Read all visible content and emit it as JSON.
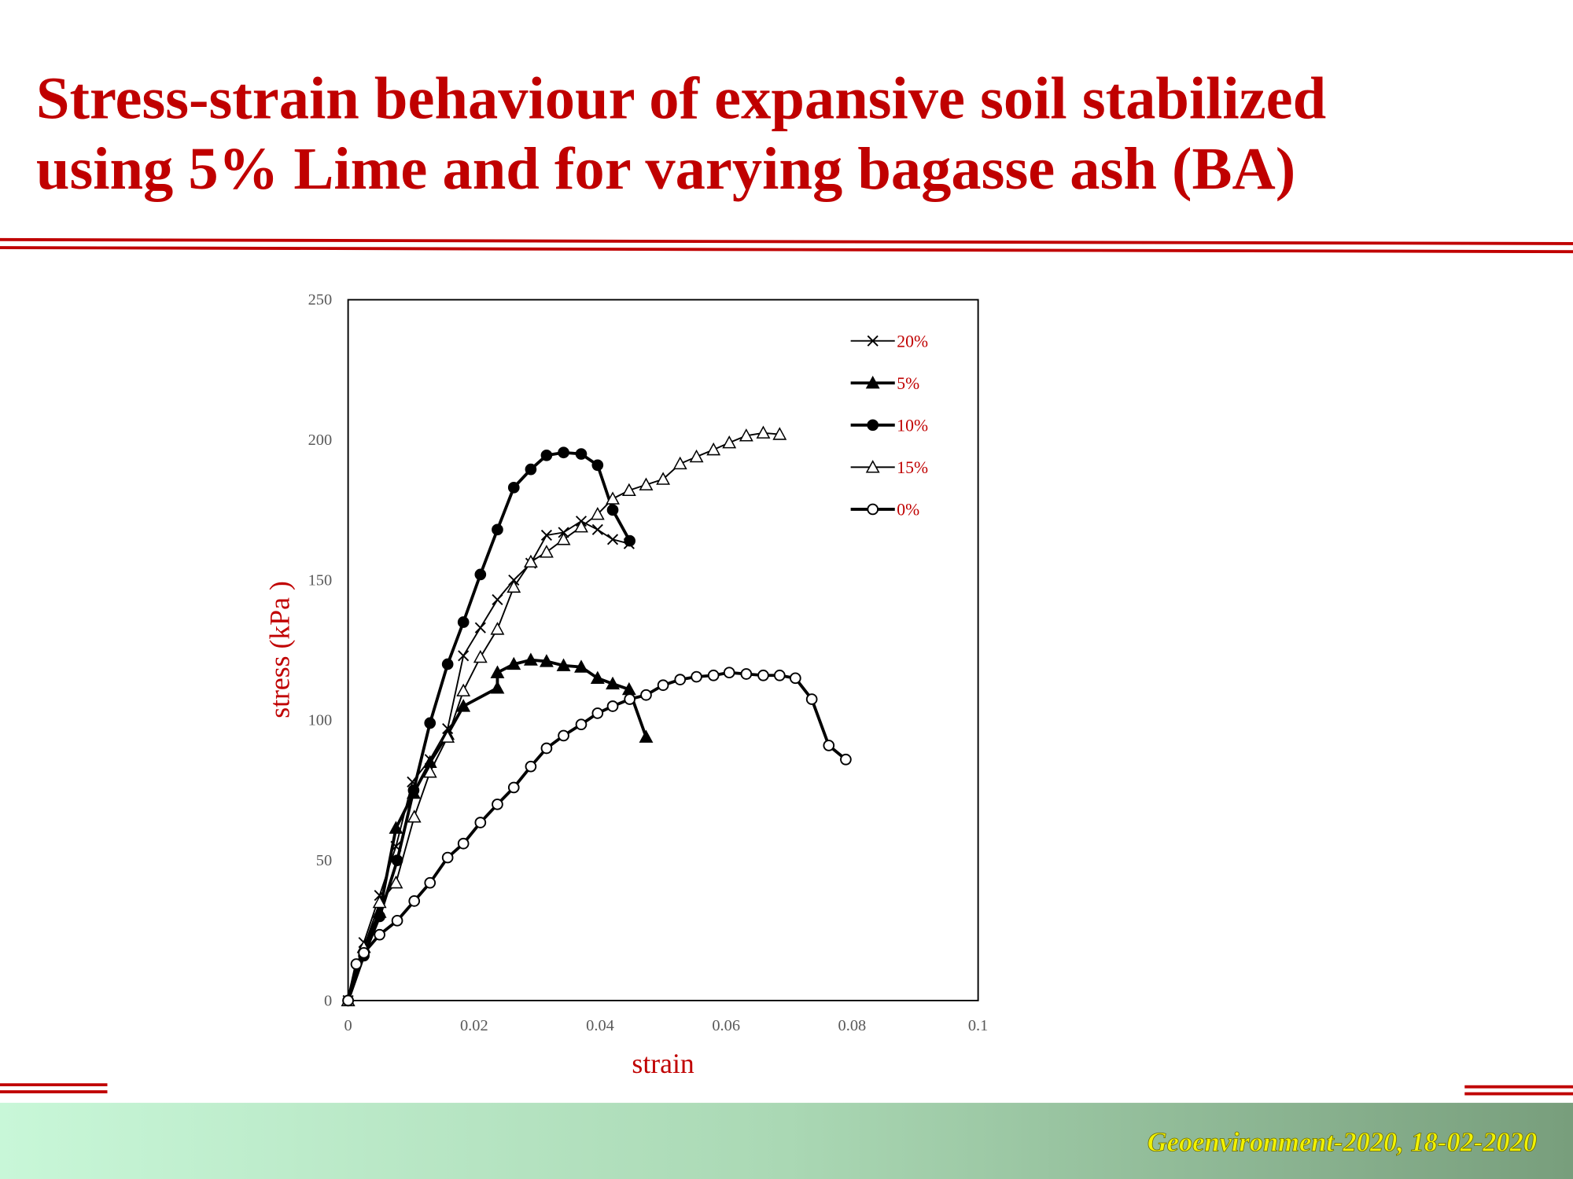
{
  "slide": {
    "title": [
      "Stress-strain behaviour of expansive soil stabilized",
      "using 5% Lime and for varying bagasse ash (BA)"
    ],
    "footer": "Geoenvironment-2020, 18-02-2020"
  },
  "chart_data": {
    "type": "line",
    "xlabel": "strain",
    "ylabel": "stress (kPa )",
    "xlim": [
      0,
      0.1
    ],
    "xticks": [
      0,
      0.02,
      0.04,
      0.06,
      0.08,
      0.1
    ],
    "ylim": [
      0,
      250
    ],
    "yticks": [
      0,
      50,
      100,
      150,
      200,
      250
    ],
    "legend": "upper right",
    "series": [
      {
        "name": "20%",
        "color": "#000000",
        "marker": "cross",
        "line_width": 1.5,
        "x": [
          0,
          0.0025,
          0.005,
          0.0076,
          0.0102,
          0.013,
          0.0158,
          0.0183,
          0.021,
          0.0237,
          0.0263,
          0.029,
          0.0315,
          0.0342,
          0.037,
          0.0396,
          0.042,
          0.0446
        ],
        "values": [
          0,
          20.7,
          37.5,
          55,
          78,
          86,
          97,
          123,
          133,
          143,
          150,
          156,
          166,
          167,
          171,
          168,
          164.5,
          163
        ]
      },
      {
        "name": "5%",
        "color": "#000000",
        "marker": "filled-triangle",
        "line_width": 3,
        "x": [
          0,
          0.0025,
          0.005,
          0.0076,
          0.0104,
          0.013,
          0.0158,
          0.0183,
          0.0237,
          0.0237,
          0.0263,
          0.029,
          0.0315,
          0.0342,
          0.037,
          0.0396,
          0.042,
          0.0446,
          0.0473
        ],
        "values": [
          0,
          19,
          31.5,
          61.5,
          74,
          85,
          95,
          105,
          111.5,
          117,
          120,
          121.5,
          121,
          119.5,
          119,
          115,
          113,
          111,
          94
        ]
      },
      {
        "name": "10%",
        "color": "#000000",
        "marker": "filled-circle",
        "line_width": 3,
        "x": [
          0,
          0.0025,
          0.005,
          0.0078,
          0.0104,
          0.013,
          0.0158,
          0.0183,
          0.021,
          0.0237,
          0.0263,
          0.029,
          0.0315,
          0.0342,
          0.037,
          0.0396,
          0.042,
          0.0447
        ],
        "values": [
          0,
          16,
          30,
          50,
          75,
          99,
          120,
          135,
          152,
          168,
          183,
          189.5,
          194.5,
          195.5,
          195,
          191,
          175,
          164
        ]
      },
      {
        "name": "15%",
        "color": "#000000",
        "marker": "open-triangle",
        "line_width": 1.5,
        "x": [
          0,
          0.0025,
          0.005,
          0.0076,
          0.0105,
          0.013,
          0.0158,
          0.0183,
          0.021,
          0.0237,
          0.0263,
          0.029,
          0.0315,
          0.0342,
          0.037,
          0.0396,
          0.042,
          0.0446,
          0.0473,
          0.05,
          0.0527,
          0.0553,
          0.058,
          0.0605,
          0.0632,
          0.0659,
          0.0685
        ],
        "values": [
          0,
          19,
          35,
          42,
          65.5,
          81.5,
          94,
          110.5,
          122.5,
          132.5,
          147.5,
          156.5,
          160,
          164.5,
          169,
          173.5,
          179,
          182,
          184,
          186,
          191.5,
          194,
          196.5,
          199,
          201.5,
          202.5,
          202
        ]
      },
      {
        "name": "0%",
        "color": "#000000",
        "marker": "open-circle",
        "line_width": 3,
        "x": [
          0,
          0.0013,
          0.0025,
          0.005,
          0.0078,
          0.0105,
          0.013,
          0.0158,
          0.0183,
          0.021,
          0.0237,
          0.0263,
          0.029,
          0.0315,
          0.0342,
          0.037,
          0.0396,
          0.042,
          0.0447,
          0.0473,
          0.05,
          0.0527,
          0.0553,
          0.058,
          0.0605,
          0.0632,
          0.0659,
          0.0685,
          0.071,
          0.0736,
          0.0763,
          0.079
        ],
        "values": [
          0,
          13,
          17,
          23.5,
          28.5,
          35.5,
          42,
          51,
          56,
          63.5,
          70,
          76,
          83.5,
          90,
          94.5,
          98.5,
          102.5,
          105,
          107.5,
          109,
          112.5,
          114.5,
          115.5,
          116,
          117,
          116.5,
          116,
          116,
          115,
          107.5,
          91,
          86
        ]
      }
    ]
  }
}
